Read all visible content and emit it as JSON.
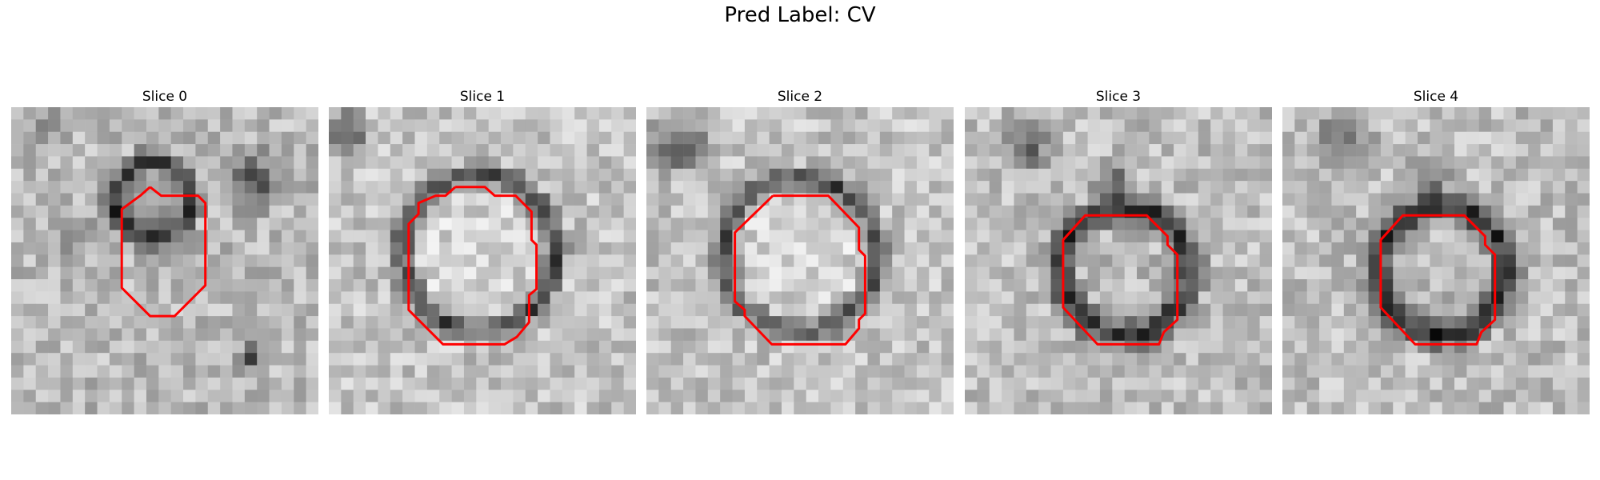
{
  "figure": {
    "title": "Pred Label: CV",
    "panels": [
      {
        "title": "Slice 0"
      },
      {
        "title": "Slice 1"
      },
      {
        "title": "Slice 2"
      },
      {
        "title": "Slice 3"
      },
      {
        "title": "Slice 4"
      }
    ]
  },
  "colors": {
    "contour": "#ff0000",
    "background": "#ffffff"
  }
}
